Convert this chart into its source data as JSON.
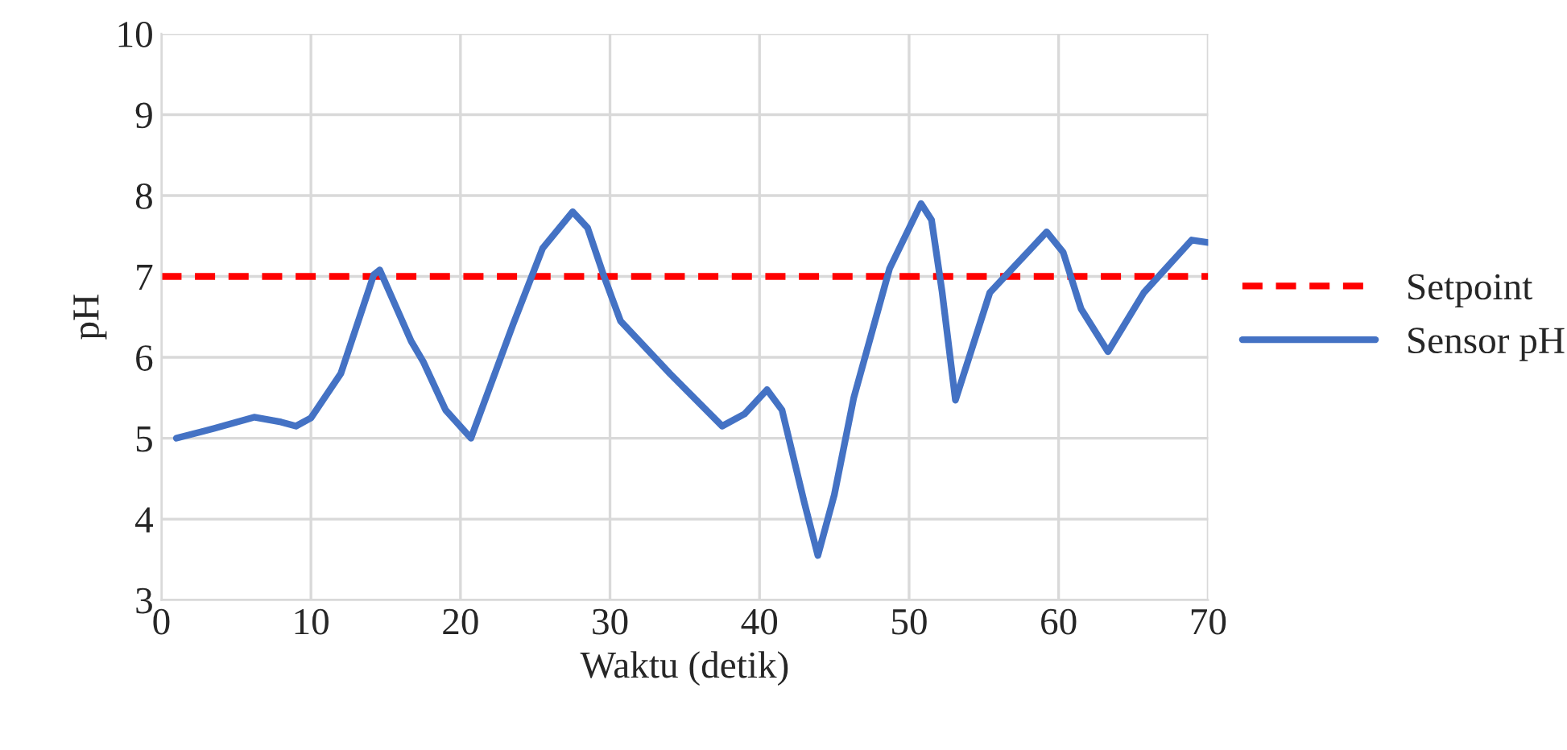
{
  "chart_data": {
    "type": "line",
    "xlabel": "Waktu (detik)",
    "ylabel": "pH",
    "xlim": [
      0,
      70
    ],
    "xticks": [
      0,
      10,
      20,
      30,
      40,
      50,
      60,
      70
    ],
    "ylim": [
      3,
      10
    ],
    "yticks": [
      3,
      4,
      5,
      6,
      7,
      8,
      9,
      10
    ],
    "grid": true,
    "legend": "right",
    "marker": "none",
    "series": [
      {
        "name": "Setpoint",
        "color": "#ff0000",
        "line_style": "dashed",
        "x": [
          0,
          70
        ],
        "values": [
          7,
          7
        ]
      },
      {
        "name": "Sensor pH",
        "color": "#4472c4",
        "line_style": "solid",
        "x": [
          1,
          3.5,
          6.2,
          8,
          9,
          10,
          12,
          14.2,
          14.6,
          16.7,
          17.5,
          19,
          20.7,
          23.5,
          25.5,
          27.5,
          28.5,
          29.6,
          30.7,
          34,
          37.5,
          39,
          40.5,
          41.5,
          43,
          43.9,
          45,
          46.3,
          48.7,
          50.8,
          51.5,
          52.2,
          53.1,
          55.4,
          59.2,
          60.3,
          61.5,
          63.3,
          65.7,
          68.9,
          70
        ],
        "values": [
          5.0,
          5.12,
          5.26,
          5.2,
          5.15,
          5.25,
          5.8,
          7.02,
          7.08,
          6.2,
          5.95,
          5.35,
          5.0,
          6.4,
          7.35,
          7.8,
          7.6,
          7.0,
          6.45,
          5.8,
          5.15,
          5.3,
          5.6,
          5.35,
          4.2,
          3.55,
          4.3,
          5.5,
          7.1,
          7.9,
          7.7,
          6.82,
          5.47,
          6.8,
          7.55,
          7.3,
          6.6,
          6.07,
          6.8,
          7.45,
          7.42
        ]
      }
    ]
  }
}
